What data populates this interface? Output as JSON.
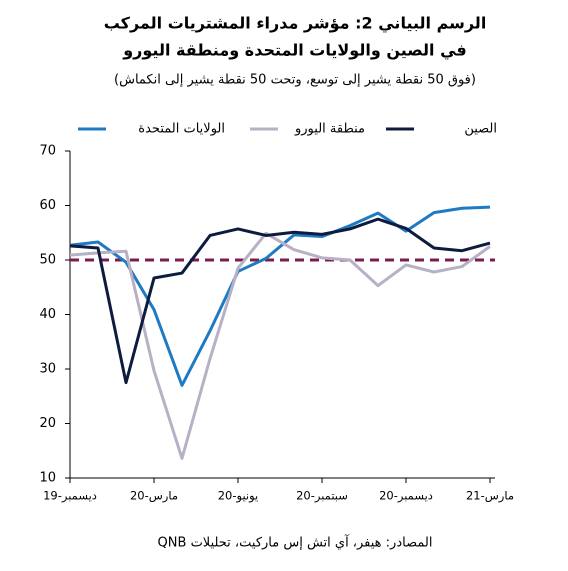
{
  "chart_data": {
    "type": "line",
    "title": "الرسم البياني 2: مؤشر مدراء المشتريات المركب",
    "subtitle": "في الصين والولايات المتحدة ومنطقة اليورو",
    "note": "(فوق 50 نقطة يشير إلى توسع، وتحت 50 نقطة يشير إلى انكماش)",
    "source": "المصادر: هيفر، آي اتش إس ماركيت، تحليلات QNB",
    "categories": [
      "ديسمبر-19",
      null,
      null,
      "مارس-20",
      null,
      null,
      "يونيو-20",
      null,
      null,
      "سبتمبر-20",
      null,
      null,
      "ديسمبر-20",
      null,
      null,
      "مارس-21"
    ],
    "series": [
      {
        "name": "الولايات المتحدة",
        "color": "#1f7ac4",
        "values": [
          52.7,
          53.3,
          49.6,
          40.9,
          27.0,
          37.0,
          47.9,
          50.3,
          54.6,
          54.3,
          56.3,
          58.6,
          55.3,
          58.7,
          59.5,
          59.7
        ]
      },
      {
        "name": "منطقة اليورو",
        "color": "#b8b0c4",
        "values": [
          50.9,
          51.3,
          51.6,
          29.7,
          13.6,
          31.9,
          48.5,
          54.9,
          51.9,
          50.4,
          50.0,
          45.3,
          49.1,
          47.8,
          48.8,
          52.5
        ]
      },
      {
        "name": "الصين",
        "color": "#0d1b3e",
        "values": [
          52.6,
          52.2,
          27.5,
          46.7,
          47.6,
          54.5,
          55.7,
          54.5,
          55.1,
          54.7,
          55.7,
          57.5,
          55.8,
          52.2,
          51.7,
          53.1
        ]
      }
    ],
    "reference": 50,
    "reference_color": "#7b1c4f",
    "ylim": [
      10,
      70
    ],
    "yticks": [
      10,
      20,
      30,
      40,
      50,
      60,
      70
    ],
    "grid": false
  }
}
